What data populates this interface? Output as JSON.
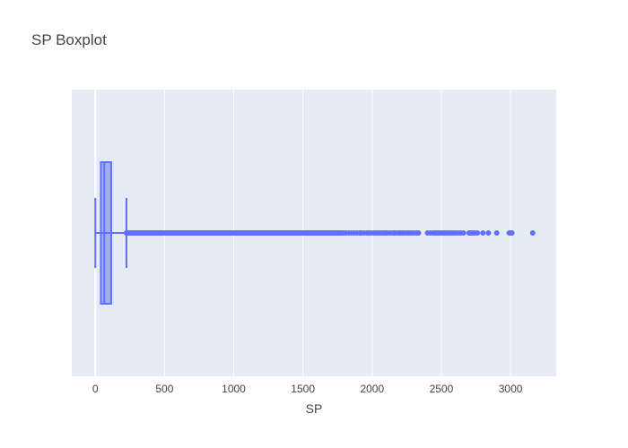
{
  "chart_data": {
    "type": "box",
    "title": "SP Boxplot",
    "xlabel": "SP",
    "ylabel": "",
    "orientation": "horizontal",
    "xlim": [
      -170,
      3330
    ],
    "xticks": [
      0,
      500,
      1000,
      1500,
      2000,
      2500,
      3000
    ],
    "grid": true,
    "legend": false,
    "series": [
      {
        "box": {
          "lower_fence": 0,
          "q1": 40,
          "median": 65,
          "q3": 115,
          "upper_fence": 225
        },
        "outliers_dense_range": [
          225,
          1800
        ],
        "outliers": [
          1810,
          1830,
          1850,
          1870,
          1890,
          1910,
          1920,
          1940,
          1960,
          1975,
          1990,
          2010,
          2025,
          2040,
          2055,
          2070,
          2085,
          2100,
          2110,
          2130,
          2150,
          2160,
          2170,
          2190,
          2200,
          2215,
          2230,
          2250,
          2265,
          2280,
          2300,
          2320,
          2335,
          2400,
          2420,
          2440,
          2455,
          2470,
          2480,
          2495,
          2510,
          2525,
          2540,
          2555,
          2570,
          2585,
          2600,
          2620,
          2640,
          2660,
          2700,
          2710,
          2725,
          2740,
          2760,
          2800,
          2840,
          2900,
          2990,
          3000,
          3010,
          3160
        ]
      }
    ]
  },
  "colors": {
    "trace": "#636efa",
    "plot_bg": "#e5ecf6",
    "grid": "#ffffff",
    "text": "#444444"
  }
}
